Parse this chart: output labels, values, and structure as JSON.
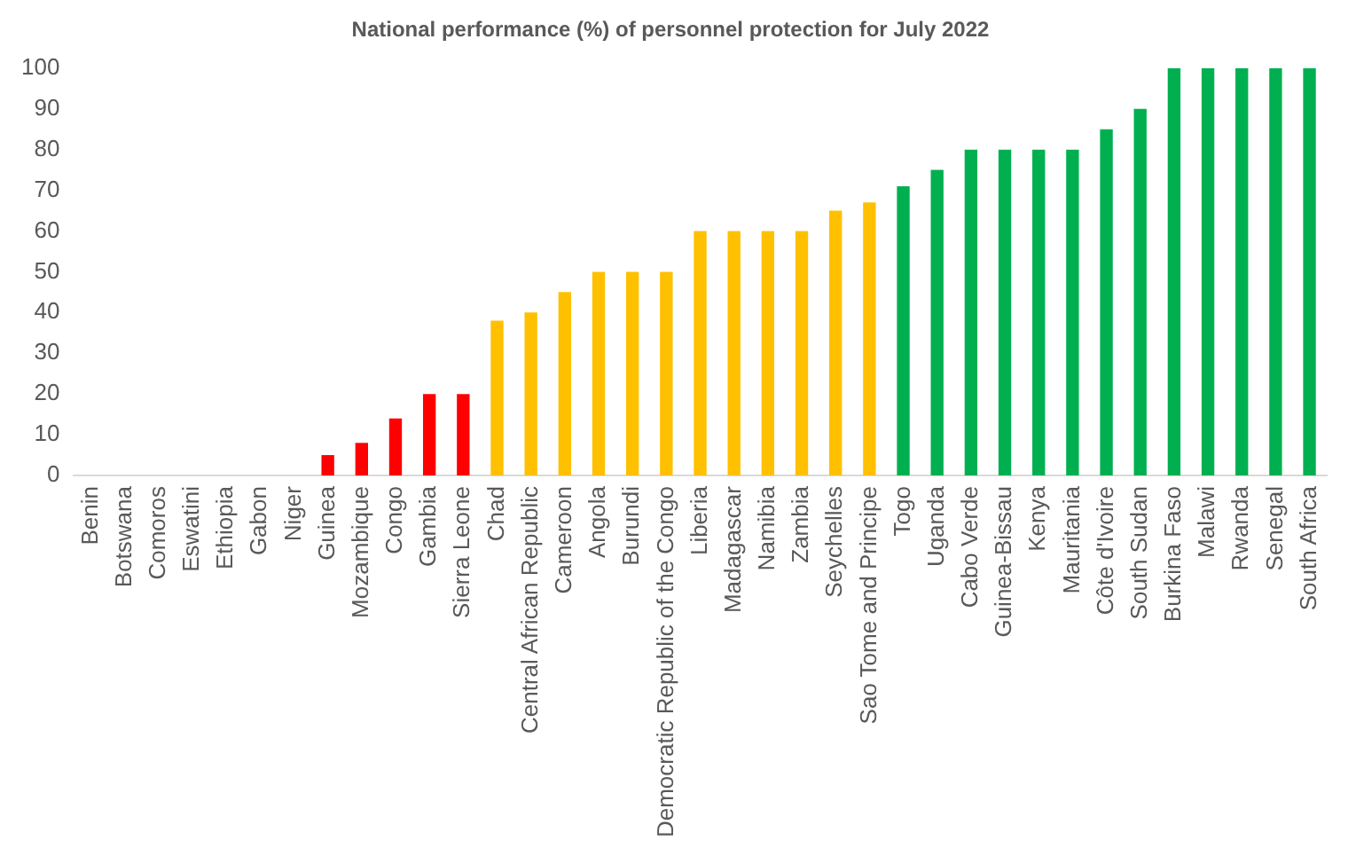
{
  "chart_data": {
    "type": "bar",
    "title": "National performance (%) of personnel protection for July 2022",
    "categories": [
      "Benin",
      "Botswana",
      "Comoros",
      "Eswatini",
      "Ethiopia",
      "Gabon",
      "Niger",
      "Guinea",
      "Mozambique",
      "Congo",
      "Gambia",
      "Sierra Leone",
      "Chad",
      "Central African Republic",
      "Cameroon",
      "Angola",
      "Burundi",
      "Democratic Republic of the Congo",
      "Liberia",
      "Madagascar",
      "Namibia",
      "Zambia",
      "Seychelles",
      "Sao Tome and Principe",
      "Togo",
      "Uganda",
      "Cabo Verde",
      "Guinea-Bissau",
      "Kenya",
      "Mauritania",
      "Côte d'Ivoire",
      "South Sudan",
      "Burkina Faso",
      "Malawi",
      "Rwanda",
      "Senegal",
      "South Africa"
    ],
    "values": [
      0,
      0,
      0,
      0,
      0,
      0,
      0,
      5,
      8,
      14,
      20,
      20,
      38,
      40,
      45,
      50,
      50,
      50,
      60,
      60,
      60,
      60,
      65,
      67,
      71,
      75,
      80,
      80,
      80,
      80,
      85,
      90,
      100,
      100,
      100,
      100,
      100
    ],
    "colors": [
      "#ff0000",
      "#ff0000",
      "#ff0000",
      "#ff0000",
      "#ff0000",
      "#ff0000",
      "#ff0000",
      "#ff0000",
      "#ff0000",
      "#ff0000",
      "#ff0000",
      "#ff0000",
      "#ffc000",
      "#ffc000",
      "#ffc000",
      "#ffc000",
      "#ffc000",
      "#ffc000",
      "#ffc000",
      "#ffc000",
      "#ffc000",
      "#ffc000",
      "#ffc000",
      "#ffc000",
      "#00b050",
      "#00b050",
      "#00b050",
      "#00b050",
      "#00b050",
      "#00b050",
      "#00b050",
      "#00b050",
      "#00b050",
      "#00b050",
      "#00b050",
      "#00b050",
      "#00b050"
    ],
    "ylim": [
      0,
      100
    ],
    "yticks": [
      0,
      10,
      20,
      30,
      40,
      50,
      60,
      70,
      80,
      90,
      100
    ],
    "grid": false,
    "legend": false
  }
}
